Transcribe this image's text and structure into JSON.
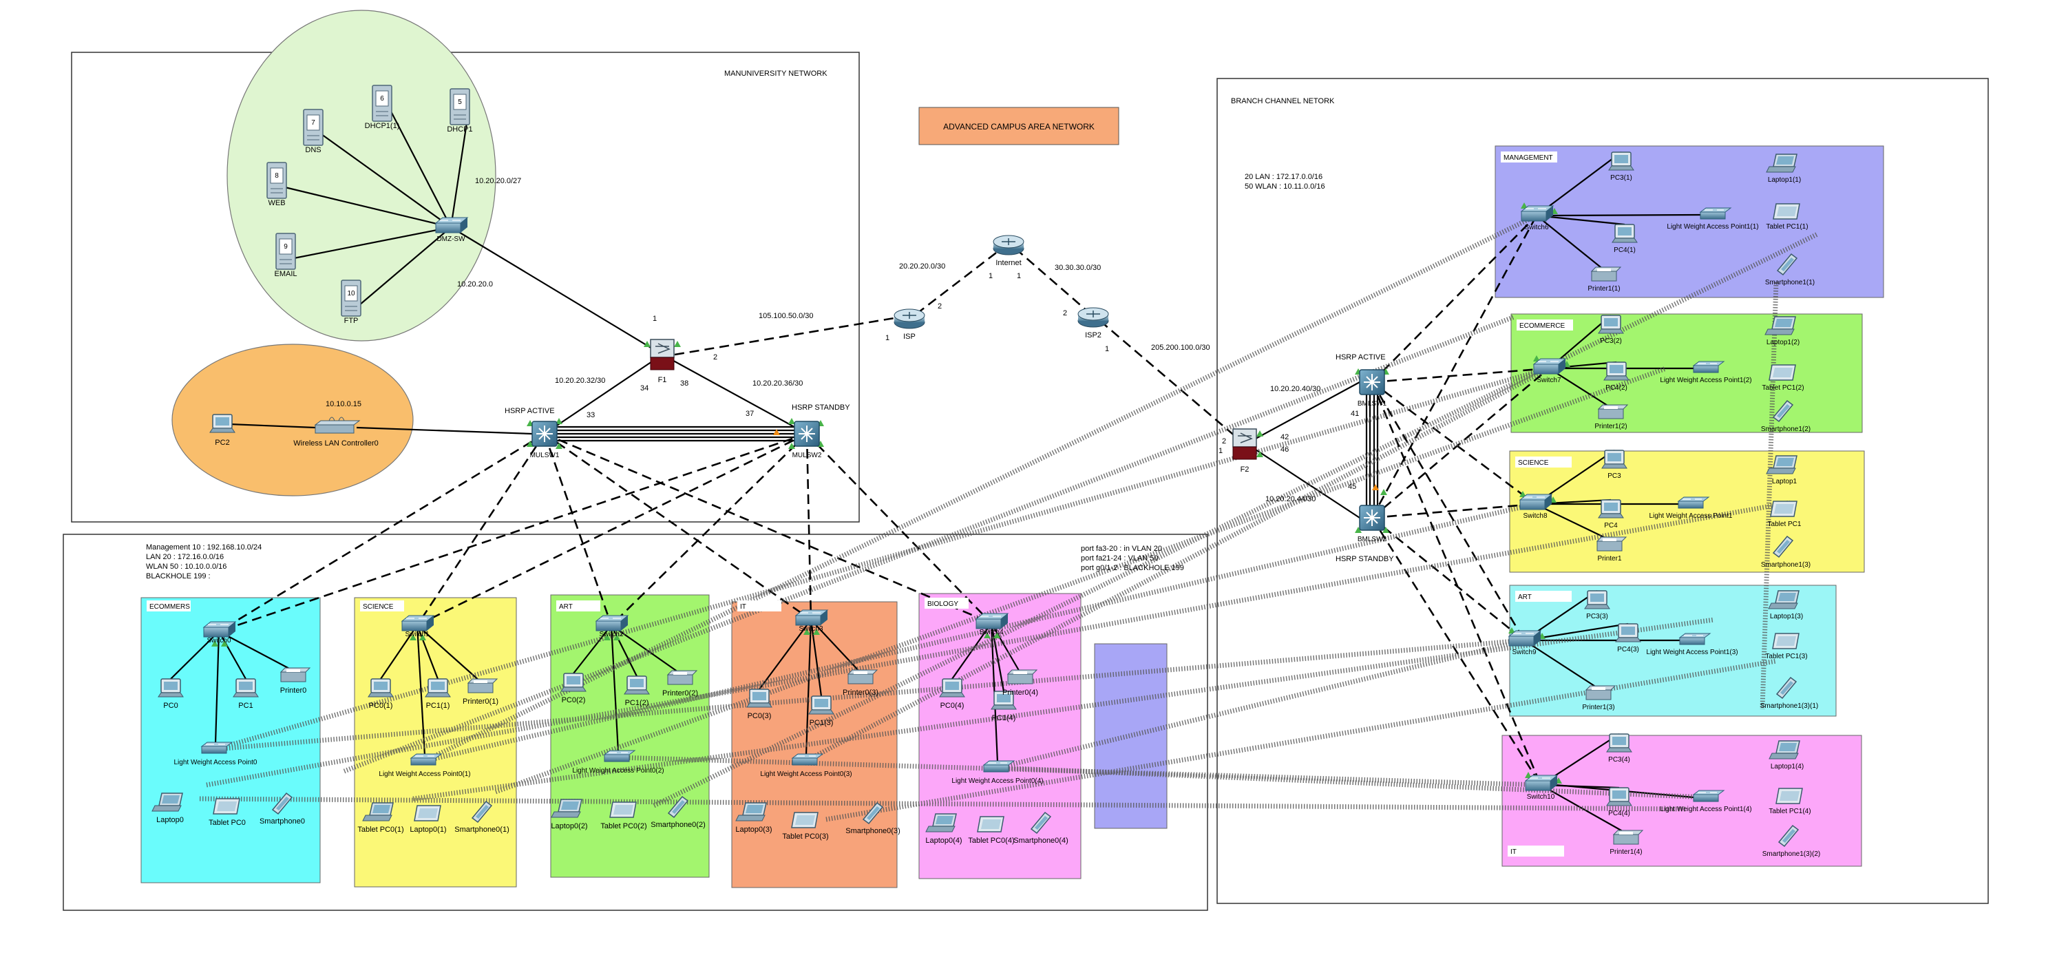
{
  "title": "ADVANCED CAMPUS AREA NETWORK",
  "colors": {
    "dmz_zone": "#dff5d0",
    "wlc_zone": "#f9be6c",
    "title_box": "#f7a978",
    "management": "#a9a8f6",
    "ecommerce": "#a3f56e",
    "science": "#fbf877",
    "art": "#9bf6f6",
    "it": "#f7a37a",
    "biology": "#fca7f9",
    "ecommers_main": "#6afcfc",
    "blue_box": "#a8a6f6",
    "link": "#000000",
    "port_up": "#49b449",
    "port_standby": "#f08c14"
  },
  "main_site": {
    "title": "MANUNIVERSITY NETWORK",
    "dmz_subnet": "10.20.20.0/27",
    "dmz_net": "10.20.20.0",
    "wlc_ip": "10.10.0.15",
    "devices": {
      "dns": {
        "label": "DNS",
        "num": "7"
      },
      "dhcp1": {
        "label": "DHCP1(1)",
        "num": "6"
      },
      "dhcp": {
        "label": "DHCP1",
        "num": "5"
      },
      "web": {
        "label": "WEB",
        "num": "8"
      },
      "email": {
        "label": "EMAIL",
        "num": "9"
      },
      "ftp": {
        "label": "FTP",
        "num": "10"
      },
      "dmz_switch": {
        "label": "DMZ-SW"
      },
      "pc2": {
        "label": "PC2"
      },
      "wlc": {
        "label": "Wireless LAN Controller0"
      },
      "f1": {
        "label": "F1"
      },
      "mls1": {
        "label": "MULSW1"
      },
      "mls2": {
        "label": "MULSW2"
      }
    },
    "hsrp_active": "HSRP ACTIVE",
    "hsrp_standby": "HSRP STANDBY",
    "link_labels": {
      "f1_mls1": "10.20.20.32/30",
      "f1_mls2": "10.20.20.36/30",
      "f1_isp": "105.100.50.0/30",
      "p1": "1",
      "p2": "2",
      "p34": "34",
      "p38": "38",
      "p33": "33",
      "p37": "37"
    }
  },
  "wan": {
    "internet": "Internet",
    "isp": "ISP",
    "isp2": "ISP2",
    "isp_internet": "20.20.20.0/30",
    "internet_isp2": "30.30.30.0/30",
    "isp2_f2": "205.200.100.0/30",
    "n1": "1",
    "n2": "2"
  },
  "vlan_info": {
    "line1": "Management 10 : 192.168.10.0/24",
    "line2": "LAN 20 : 172.16.0.0/16",
    "line3": "WLAN 50 : 10.10.0.0/16",
    "line4": "BLACKHOLE 199 :"
  },
  "port_info": {
    "line1": "port fa3-20 : in VLAN 20",
    "line2": "port fa21-24 : VLAN 50",
    "line3": "port g0/1-2 : BLACKHOLE 199"
  },
  "departments": {
    "ecommers": {
      "label": "ECOMMERS",
      "switch": "Switch0",
      "ap": "Light Weight Access Point0",
      "pcs": [
        "PC0",
        "PC1"
      ],
      "printer": "Printer0",
      "mobiles": [
        "Laptop0",
        "Tablet PC0",
        "Smartphone0"
      ]
    },
    "science": {
      "label": "SCIENCE",
      "switch": "Switch1",
      "ap": "Light Weight Access Point0(1)",
      "pcs": [
        "PC0(1)",
        "PC1(1)"
      ],
      "printer": "Printer0(1)",
      "mobiles": [
        "Tablet PC0(1)",
        "Laptop0(1)",
        "Smartphone0(1)"
      ]
    },
    "art": {
      "label": "ART",
      "switch": "Switch2",
      "ap": "Light Weight Access Point0(2)",
      "pcs": [
        "PC0(2)",
        "PC1(2)"
      ],
      "printer": "Printer0(2)",
      "mobiles": [
        "Laptop0(2)",
        "Tablet PC0(2)",
        "Smartphone0(2)"
      ]
    },
    "it": {
      "label": "IT",
      "switch": "Switch3",
      "ap": "Light Weight Access Point0(3)",
      "pcs": [
        "PC0(3)",
        "PC1(3)"
      ],
      "printer": "Printer0(3)",
      "mobiles": [
        "Laptop0(3)",
        "Tablet PC0(3)",
        "Smartphone0(3)"
      ]
    },
    "biology": {
      "label": "BIOLOGY",
      "switch": "Switch4",
      "ap": "Light Weight Access Point0(4)",
      "pcs": [
        "PC0(4)",
        "PC1(4)"
      ],
      "printer": "Printer0(4)",
      "mobiles": [
        "Laptop0(4)",
        "Tablet PC0(4)",
        "Smartphone0(4)"
      ]
    }
  },
  "branch": {
    "title": "BRANCH CHANNEL NETORK",
    "lan_line": "20 LAN : 172.17.0.0/16",
    "wlan_line": "50 WLAN : 10.11.0.0/16",
    "f2": "F2",
    "mls1": "BMLSW1",
    "mls2": "BMLSW2",
    "hsrp_active": "HSRP ACTIVE",
    "hsrp_standby": "HSRP STANDBY",
    "net1": "10.20.20.40/30",
    "net2": "10.20.20.44/30",
    "p2": "2",
    "p42": "42",
    "p46": "46",
    "p41": "41",
    "p45": "45",
    "p1": "1",
    "depts": {
      "management": {
        "label": "MANAGEMENT",
        "switch": "Switch6",
        "pc_a": "PC3(1)",
        "pc_b": "PC4(1)",
        "ap": "Light Weight Access Point1(1)",
        "printer": "Printer1(1)",
        "laptop": "Laptop1(1)",
        "tablet": "Tablet PC1(1)",
        "phone": "Smartphone1(1)"
      },
      "ecommerce": {
        "label": "ECOMMERCE",
        "switch": "Switch7",
        "pc_a": "PC3(2)",
        "pc_b": "PC4(2)",
        "ap": "Light Weight Access Point1(2)",
        "printer": "Printer1(2)",
        "laptop": "Laptop1(2)",
        "tablet": "Tablet PC1(2)",
        "phone": "Smartphone1(2)"
      },
      "science": {
        "label": "SCIENCE",
        "switch": "Switch8",
        "pc_a": "PC3",
        "pc_b": "PC4",
        "ap": "Light Weight Access Point1",
        "printer": "Printer1",
        "laptop": "Laptop1",
        "tablet": "Tablet PC1",
        "phone": "Smartphone1(3)"
      },
      "art": {
        "label": "ART",
        "switch": "Switch9",
        "pc_a": "PC3(3)",
        "pc_b": "PC4(3)",
        "ap": "Light Weight Access Point1(3)",
        "printer": "Printer1(3)",
        "laptop": "Laptop1(3)",
        "tablet": "Tablet PC1(3)",
        "phone": "Smartphone1(3)(1)"
      },
      "it": {
        "label": "IT",
        "switch": "Switch10",
        "pc_a": "PC3(4)",
        "pc_b": "PC4(4)",
        "ap": "Light Weight Access Point1(4)",
        "printer": "Printer1(4)",
        "laptop": "Laptop1(4)",
        "tablet": "Tablet PC1(4)",
        "phone": "Smartphone1(3)(2)"
      }
    }
  }
}
